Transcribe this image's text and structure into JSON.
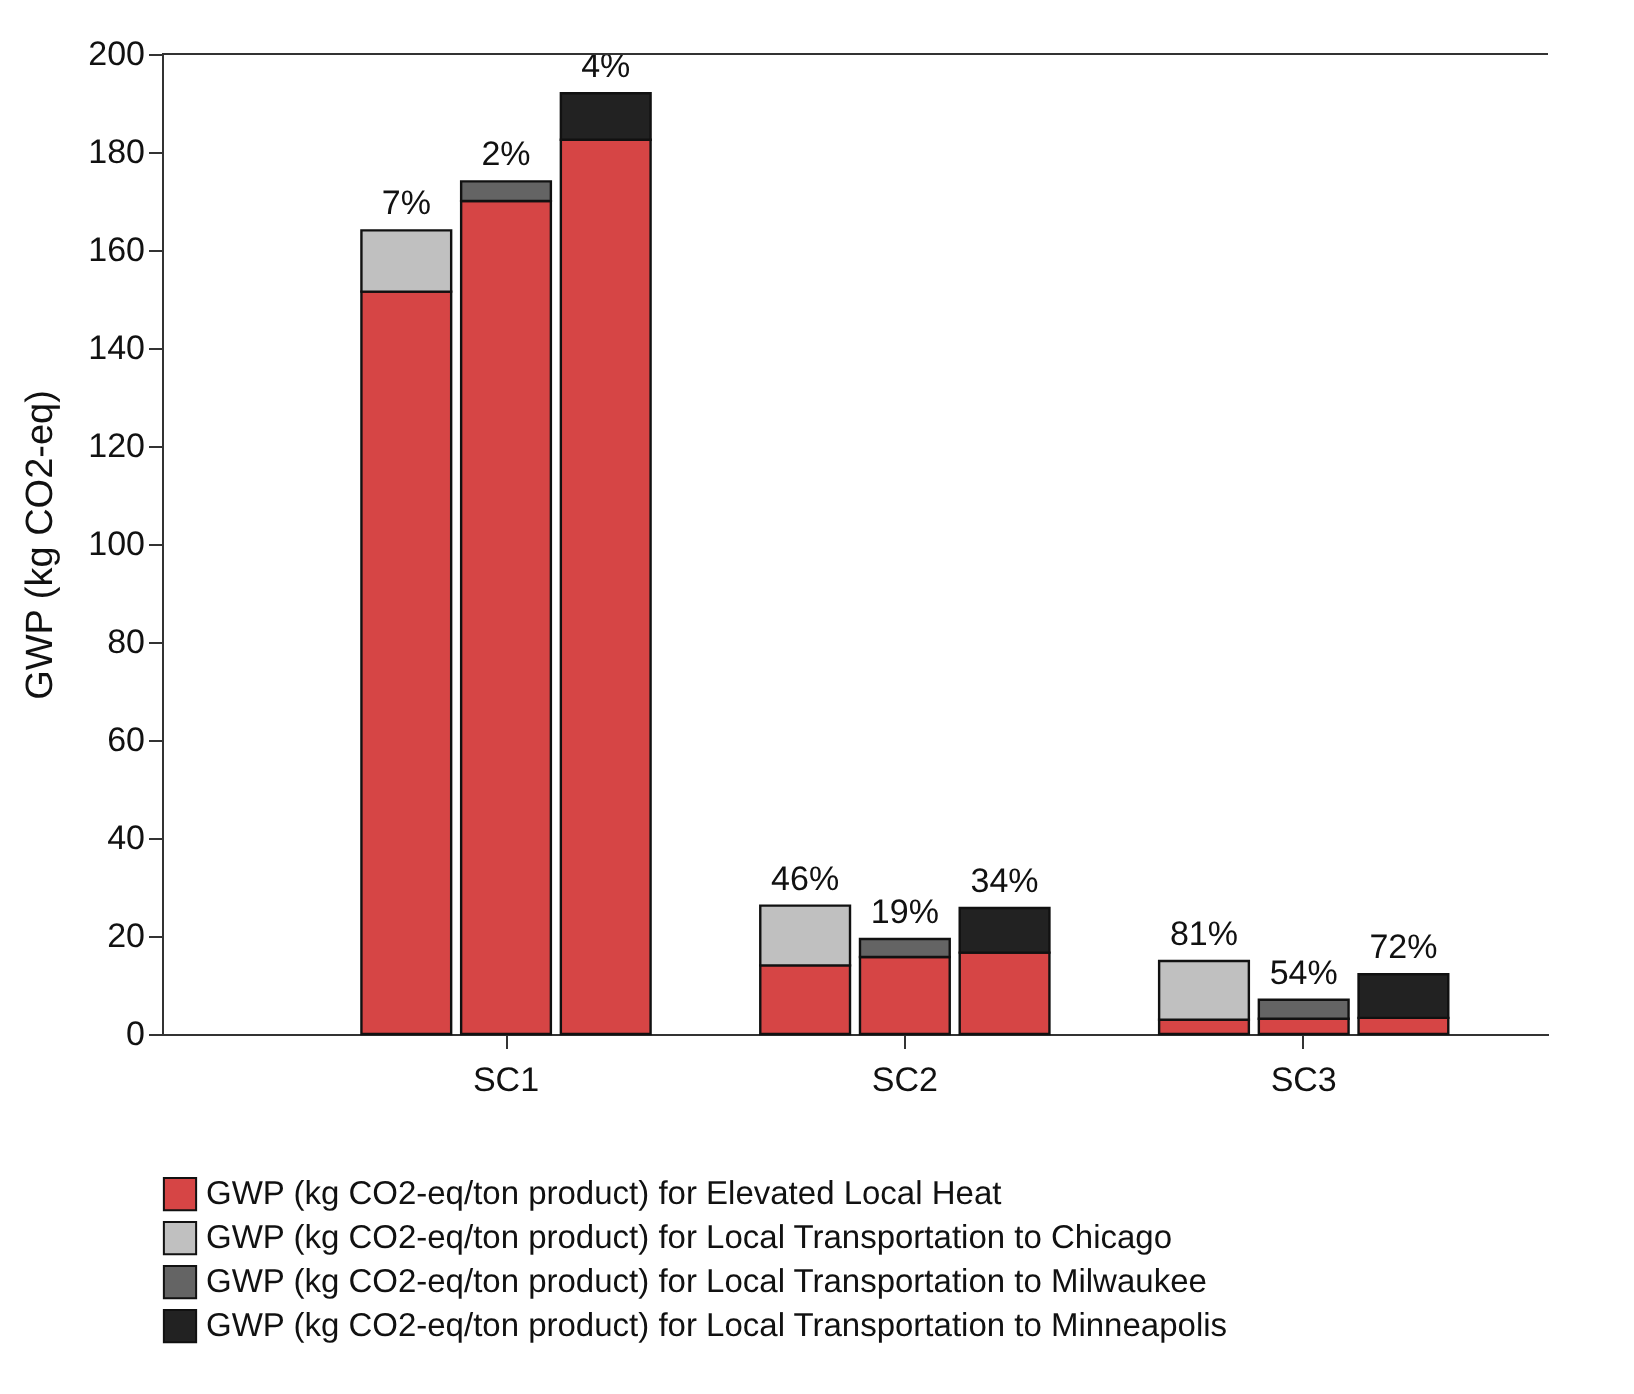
{
  "chart_data": {
    "type": "bar",
    "stacked": true,
    "ylabel": "GWP (kg CO2-eq)",
    "categories": [
      null,
      "SC1",
      null,
      null,
      "SC2",
      null,
      null,
      "SC3",
      null
    ],
    "series": [
      {
        "name": "GWP (kg CO2-eq/ton product) for Elevated Local Heat",
        "color": "#d64545",
        "values": [
          151.5,
          170,
          182.5,
          14,
          15.7,
          16.6,
          2.9,
          3.1,
          3.3
        ]
      },
      {
        "name": "GWP (kg CO2-eq/ton product) for Local Transportation to Chicago",
        "color": "#c0c0c0",
        "values": [
          12.5,
          null,
          null,
          12.2,
          null,
          null,
          12,
          null,
          null
        ]
      },
      {
        "name": "GWP (kg CO2-eq/ton product) for Local Transportation to Milwaukee",
        "color": "#646464",
        "values": [
          null,
          4,
          null,
          null,
          3.7,
          null,
          null,
          3.9,
          null
        ]
      },
      {
        "name": "GWP (kg CO2-eq/ton product) for Local Transportation to Minneapolis",
        "color": "#222222",
        "values": [
          null,
          null,
          9.5,
          null,
          null,
          9.1,
          null,
          null,
          8.9
        ]
      }
    ],
    "annotations": [
      {
        "text": "7%",
        "y": 164
      },
      {
        "text": "2%",
        "y": 174
      },
      {
        "text": "4%",
        "y": 192
      },
      {
        "text": "46%",
        "y": 26.2
      },
      {
        "text": "19%",
        "y": 19.4
      },
      {
        "text": "34%",
        "y": 25.7
      },
      {
        "text": "81%",
        "y": 14.9
      },
      {
        "text": "54%",
        "y": 7
      },
      {
        "text": "72%",
        "y": 12.2
      }
    ],
    "ylim": [
      0,
      200
    ],
    "yticks": [
      0,
      20,
      40,
      60,
      80,
      100,
      120,
      140,
      160,
      180,
      200
    ],
    "grid": false,
    "legend": "bottom"
  }
}
